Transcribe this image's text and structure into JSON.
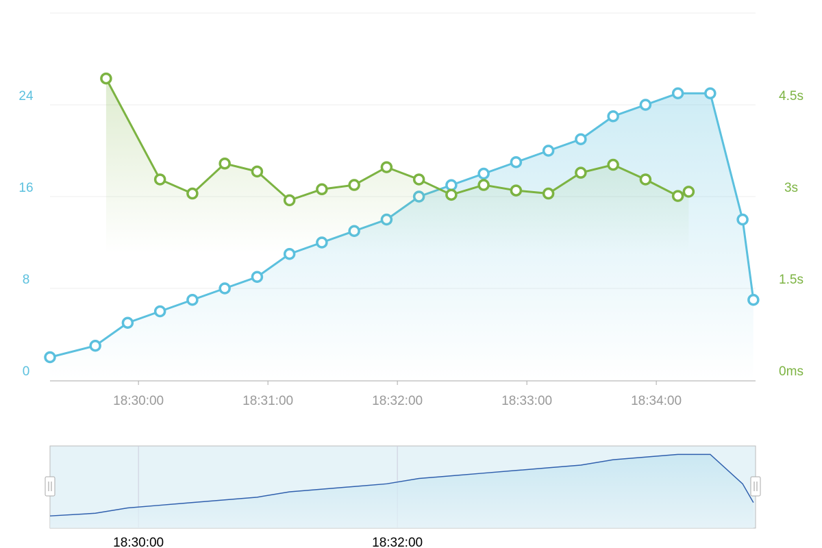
{
  "chart_data": {
    "type": "line",
    "xlim": [
      "18:29:19",
      "18:34:46"
    ],
    "xticks": [
      "18:30:00",
      "18:31:00",
      "18:32:00",
      "18:33:00",
      "18:34:00"
    ],
    "ylim": [
      0,
      32
    ],
    "yticks": [
      0,
      8,
      16,
      24
    ],
    "y2lim": [
      0,
      6
    ],
    "y2ticks": [
      {
        "value": 0,
        "label": "0ms"
      },
      {
        "value": 1.5,
        "label": "1.5s"
      },
      {
        "value": 3,
        "label": "3s"
      },
      {
        "value": 4.5,
        "label": "4.5s"
      }
    ],
    "grid": true,
    "series": [
      {
        "color": "#5bc0de",
        "x": [
          "18:29:19",
          "18:29:40",
          "18:29:55",
          "18:30:10",
          "18:30:25",
          "18:30:40",
          "18:30:55",
          "18:31:10",
          "18:31:25",
          "18:31:40",
          "18:31:55",
          "18:32:10",
          "18:32:25",
          "18:32:40",
          "18:32:55",
          "18:33:10",
          "18:33:25",
          "18:33:40",
          "18:33:55",
          "18:34:10",
          "18:34:25",
          "18:34:40",
          "18:34:45"
        ],
        "values": [
          2,
          3,
          5,
          6,
          7,
          8,
          9,
          11,
          12,
          13,
          14,
          16,
          17,
          18,
          19,
          20,
          21,
          23,
          24,
          25,
          25,
          14,
          7
        ]
      },
      {
        "color": "#7cb342",
        "axis": "y2",
        "x": [
          "18:29:45",
          "18:30:10",
          "18:30:25",
          "18:30:40",
          "18:30:55",
          "18:31:10",
          "18:31:25",
          "18:31:40",
          "18:31:55",
          "18:32:10",
          "18:32:25",
          "18:32:40",
          "18:32:55",
          "18:33:10",
          "18:33:25",
          "18:33:40",
          "18:33:55",
          "18:34:10",
          "18:34:15"
        ],
        "values": [
          4.93,
          3.28,
          3.05,
          3.54,
          3.41,
          2.94,
          3.12,
          3.19,
          3.48,
          3.28,
          3.03,
          3.19,
          3.1,
          3.05,
          3.39,
          3.52,
          3.28,
          3.01,
          3.08
        ]
      }
    ],
    "slider_xticks": [
      "18:30:00",
      "18:32:00"
    ]
  }
}
